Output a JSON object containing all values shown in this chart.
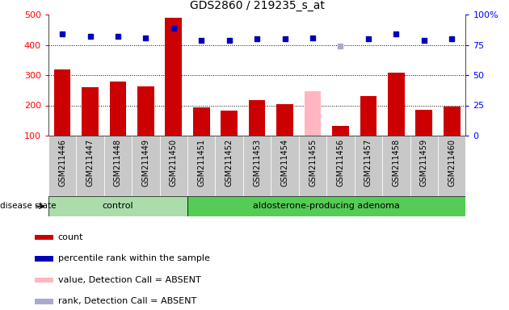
{
  "title": "GDS2860 / 219235_s_at",
  "samples": [
    "GSM211446",
    "GSM211447",
    "GSM211448",
    "GSM211449",
    "GSM211450",
    "GSM211451",
    "GSM211452",
    "GSM211453",
    "GSM211454",
    "GSM211455",
    "GSM211456",
    "GSM211457",
    "GSM211458",
    "GSM211459",
    "GSM211460"
  ],
  "counts": [
    320,
    260,
    278,
    262,
    490,
    193,
    183,
    218,
    205,
    246,
    133,
    232,
    308,
    185,
    195
  ],
  "percentile_ranks": [
    84,
    82,
    82,
    81,
    89,
    79,
    79,
    80,
    80,
    81,
    74,
    80,
    84,
    79,
    80
  ],
  "absent_value_indices": [
    9
  ],
  "absent_rank_indices": [
    10
  ],
  "control_count": 5,
  "adenoma_count": 10,
  "ylim_left": [
    100,
    500
  ],
  "ylim_right": [
    0,
    100
  ],
  "yticks_left": [
    100,
    200,
    300,
    400,
    500
  ],
  "yticks_right": [
    0,
    25,
    50,
    75,
    100
  ],
  "bar_color_normal": "#CC0000",
  "bar_color_absent_value": "#FFB6C1",
  "dot_color_normal": "#0000BB",
  "dot_color_absent_rank": "#AAAACC",
  "control_label": "control",
  "adenoma_label": "aldosterone-producing adenoma",
  "disease_state_label": "disease state",
  "legend_items": [
    {
      "label": "count",
      "color": "#CC0000"
    },
    {
      "label": "percentile rank within the sample",
      "color": "#0000BB"
    },
    {
      "label": "value, Detection Call = ABSENT",
      "color": "#FFB6C1"
    },
    {
      "label": "rank, Detection Call = ABSENT",
      "color": "#AAAACC"
    }
  ],
  "group_band_color_light": "#AADDAA",
  "group_band_color_dark": "#55CC55",
  "tick_area_color": "#C8C8C8",
  "grid_color": "#000000",
  "background_color": "#FFFFFF"
}
